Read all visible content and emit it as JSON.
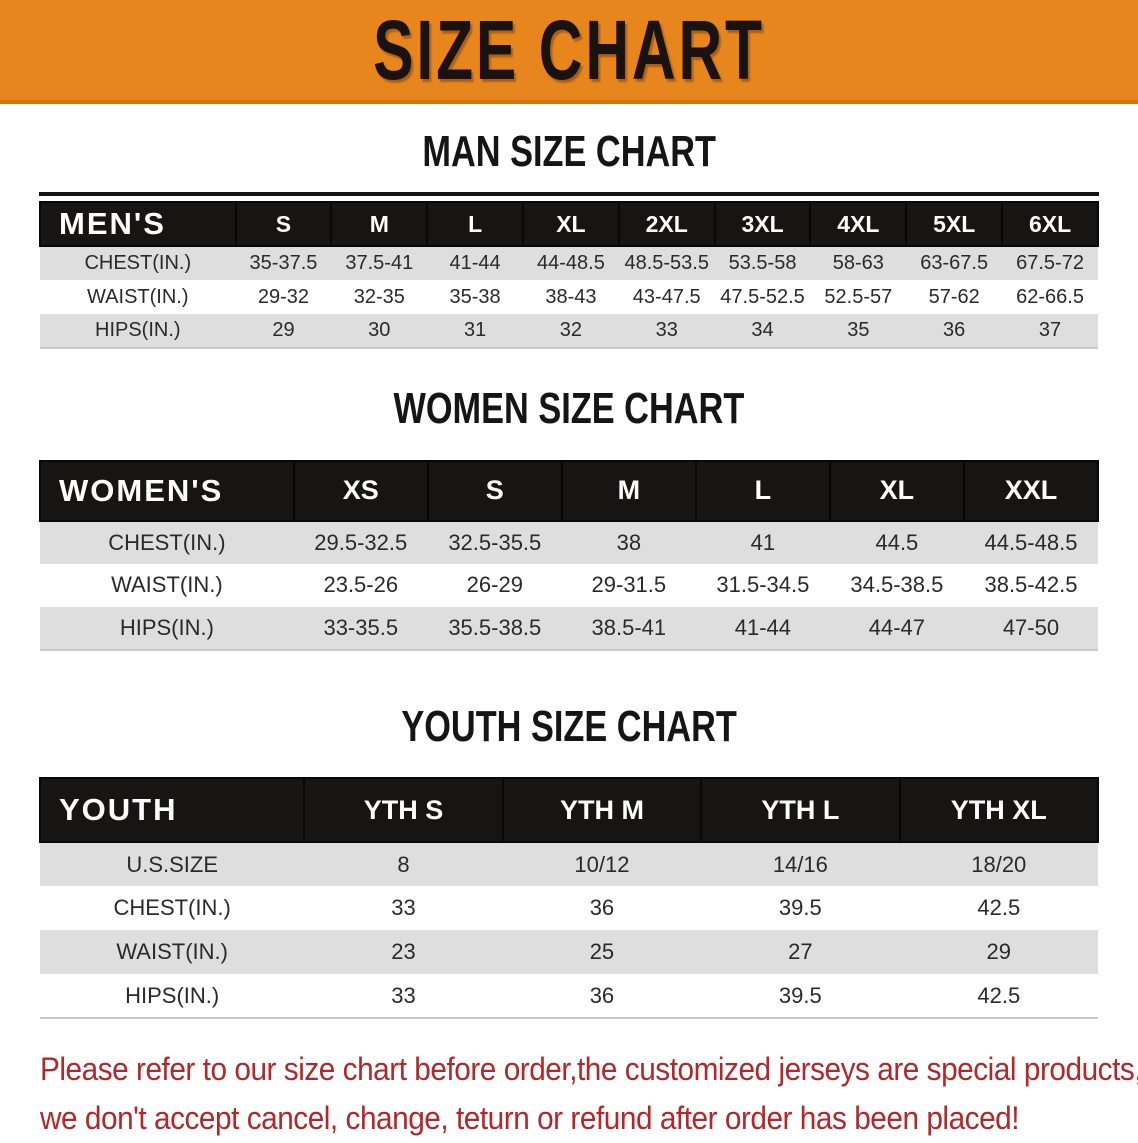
{
  "banner": {
    "title": "SIZE CHART",
    "bg_color": "#E8861E",
    "text_color": "#181310"
  },
  "sections": [
    {
      "heading": "MAN SIZE CHART",
      "table": {
        "header": [
          "MEN'S",
          "S",
          "M",
          "L",
          "XL",
          "2XL",
          "3XL",
          "4XL",
          "5XL",
          "6XL"
        ],
        "rows": [
          [
            "CHEST(IN.)",
            "35-37.5",
            "37.5-41",
            "41-44",
            "44-48.5",
            "48.5-53.5",
            "53.5-58",
            "58-63",
            "63-67.5",
            "67.5-72"
          ],
          [
            "WAIST(IN.)",
            "29-32",
            "32-35",
            "35-38",
            "38-43",
            "43-47.5",
            "47.5-52.5",
            "52.5-57",
            "57-62",
            "62-66.5"
          ],
          [
            "HIPS(IN.)",
            "29",
            "30",
            "31",
            "32",
            "33",
            "34",
            "35",
            "36",
            "37"
          ]
        ]
      }
    },
    {
      "heading": "WOMEN SIZE CHART",
      "table": {
        "header": [
          "WOMEN'S",
          "XS",
          "S",
          "M",
          "L",
          "XL",
          "XXL"
        ],
        "rows": [
          [
            "CHEST(IN.)",
            "29.5-32.5",
            "32.5-35.5",
            "38",
            "41",
            "44.5",
            "44.5-48.5"
          ],
          [
            "WAIST(IN.)",
            "23.5-26",
            "26-29",
            "29-31.5",
            "31.5-34.5",
            "34.5-38.5",
            "38.5-42.5"
          ],
          [
            "HIPS(IN.)",
            "33-35.5",
            "35.5-38.5",
            "38.5-41",
            "41-44",
            "44-47",
            "47-50"
          ]
        ]
      }
    },
    {
      "heading": "YOUTH SIZE CHART",
      "table": {
        "header": [
          "YOUTH",
          "YTH S",
          "YTH M",
          "YTH L",
          "YTH XL"
        ],
        "rows": [
          [
            "U.S.SIZE",
            "8",
            "10/12",
            "14/16",
            "18/20"
          ],
          [
            "CHEST(IN.)",
            "33",
            "36",
            "39.5",
            "42.5"
          ],
          [
            "WAIST(IN.)",
            "23",
            "25",
            "27",
            "29"
          ],
          [
            "HIPS(IN.)",
            "33",
            "36",
            "39.5",
            "42.5"
          ]
        ]
      }
    }
  ],
  "disclaimer": {
    "line1": "Please refer to our size chart before order,the customized jerseys are special products,",
    "line2": "we don't accept cancel, change, teturn or refund after order has been placed!",
    "color": "#B2282A"
  }
}
